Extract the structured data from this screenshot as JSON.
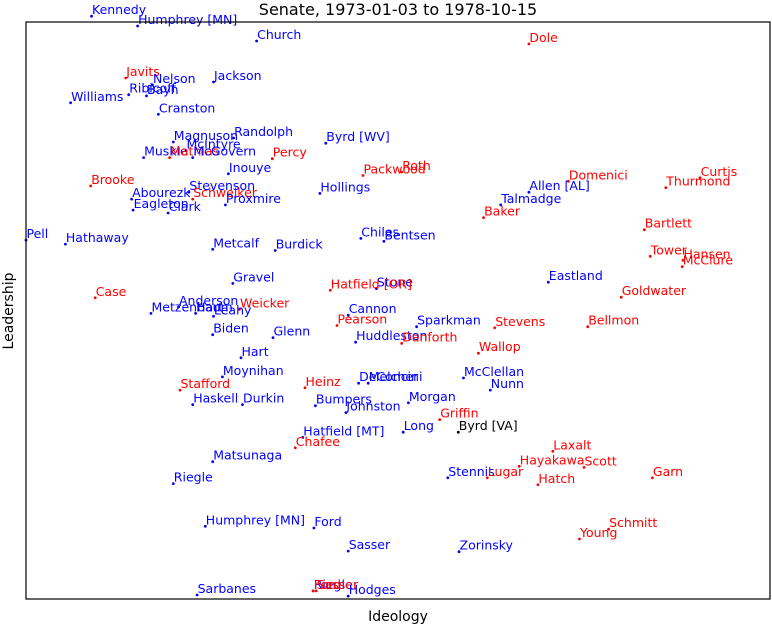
{
  "chart_data": {
    "type": "scatter",
    "title": "Senate, 1973-01-03 to 1978-10-15",
    "xlabel": "Ideology",
    "ylabel": "Leadership",
    "xlim": [
      0,
      1
    ],
    "ylim": [
      0,
      1
    ],
    "grid": false,
    "ticks": "none",
    "colors": {
      "dem": "#0000ff",
      "rep": "#ff0000",
      "ind": "#000000"
    },
    "points": [
      {
        "name": "Kennedy",
        "x": 0.088,
        "y": 1.01,
        "party": "dem"
      },
      {
        "name": "Humphrey [MN]",
        "x": 0.15,
        "y": 0.993,
        "party": "dem"
      },
      {
        "name": "Church",
        "x": 0.31,
        "y": 0.967,
        "party": "dem"
      },
      {
        "name": "Dole",
        "x": 0.676,
        "y": 0.962,
        "party": "rep"
      },
      {
        "name": "Javits",
        "x": 0.134,
        "y": 0.903,
        "party": "rep"
      },
      {
        "name": "Nelson",
        "x": 0.17,
        "y": 0.891,
        "party": "dem"
      },
      {
        "name": "Jackson",
        "x": 0.252,
        "y": 0.896,
        "party": "dem"
      },
      {
        "name": "Ribicoff",
        "x": 0.138,
        "y": 0.874,
        "party": "dem"
      },
      {
        "name": "Bayh",
        "x": 0.162,
        "y": 0.872,
        "party": "dem"
      },
      {
        "name": "Williams",
        "x": 0.06,
        "y": 0.86,
        "party": "dem"
      },
      {
        "name": "Cranston",
        "x": 0.178,
        "y": 0.84,
        "party": "dem"
      },
      {
        "name": "Randolph",
        "x": 0.279,
        "y": 0.799,
        "party": "dem"
      },
      {
        "name": "Magnuson",
        "x": 0.198,
        "y": 0.792,
        "party": "dem"
      },
      {
        "name": "Byrd [WV]",
        "x": 0.403,
        "y": 0.79,
        "party": "dem"
      },
      {
        "name": "McIntyre",
        "x": 0.215,
        "y": 0.777,
        "party": "dem"
      },
      {
        "name": "Muskie",
        "x": 0.158,
        "y": 0.765,
        "party": "dem"
      },
      {
        "name": "Mathias",
        "x": 0.193,
        "y": 0.765,
        "party": "rep"
      },
      {
        "name": "McGovern",
        "x": 0.224,
        "y": 0.765,
        "party": "dem"
      },
      {
        "name": "Percy",
        "x": 0.331,
        "y": 0.763,
        "party": "rep"
      },
      {
        "name": "Inouye",
        "x": 0.272,
        "y": 0.737,
        "party": "dem"
      },
      {
        "name": "Roth",
        "x": 0.505,
        "y": 0.74,
        "party": "rep"
      },
      {
        "name": "Packwood",
        "x": 0.453,
        "y": 0.734,
        "party": "rep"
      },
      {
        "name": "Curtis",
        "x": 0.906,
        "y": 0.73,
        "party": "rep"
      },
      {
        "name": "Domenici",
        "x": 0.729,
        "y": 0.724,
        "party": "rep"
      },
      {
        "name": "Brooke",
        "x": 0.087,
        "y": 0.716,
        "party": "rep"
      },
      {
        "name": "Thurmond",
        "x": 0.86,
        "y": 0.713,
        "party": "rep"
      },
      {
        "name": "Stevenson",
        "x": 0.219,
        "y": 0.705,
        "party": "dem"
      },
      {
        "name": "Hollings",
        "x": 0.395,
        "y": 0.703,
        "party": "dem"
      },
      {
        "name": "Allen [AL]",
        "x": 0.676,
        "y": 0.705,
        "party": "dem"
      },
      {
        "name": "Abourezk",
        "x": 0.142,
        "y": 0.693,
        "party": "dem"
      },
      {
        "name": "Schweiker",
        "x": 0.224,
        "y": 0.693,
        "party": "rep"
      },
      {
        "name": "Proxmire",
        "x": 0.268,
        "y": 0.683,
        "party": "dem"
      },
      {
        "name": "Talmadge",
        "x": 0.638,
        "y": 0.683,
        "party": "dem"
      },
      {
        "name": "Eagleton",
        "x": 0.144,
        "y": 0.674,
        "party": "dem"
      },
      {
        "name": "Clark",
        "x": 0.191,
        "y": 0.669,
        "party": "dem"
      },
      {
        "name": "Baker",
        "x": 0.615,
        "y": 0.661,
        "party": "rep"
      },
      {
        "name": "Bartlett",
        "x": 0.831,
        "y": 0.64,
        "party": "rep"
      },
      {
        "name": "Pell",
        "x": 0.0,
        "y": 0.622,
        "party": "dem"
      },
      {
        "name": "Chiles",
        "x": 0.45,
        "y": 0.625,
        "party": "dem"
      },
      {
        "name": "Bentsen",
        "x": 0.481,
        "y": 0.62,
        "party": "dem"
      },
      {
        "name": "Hathaway",
        "x": 0.053,
        "y": 0.615,
        "party": "dem"
      },
      {
        "name": "Metcalf",
        "x": 0.251,
        "y": 0.606,
        "party": "dem"
      },
      {
        "name": "Burdick",
        "x": 0.335,
        "y": 0.604,
        "party": "dem"
      },
      {
        "name": "Tower",
        "x": 0.839,
        "y": 0.594,
        "party": "rep"
      },
      {
        "name": "Hansen",
        "x": 0.883,
        "y": 0.587,
        "party": "rep"
      },
      {
        "name": "McClure",
        "x": 0.882,
        "y": 0.576,
        "party": "rep"
      },
      {
        "name": "Gravel",
        "x": 0.278,
        "y": 0.547,
        "party": "dem"
      },
      {
        "name": "Stone",
        "x": 0.471,
        "y": 0.538,
        "party": "dem"
      },
      {
        "name": "Eastland",
        "x": 0.702,
        "y": 0.549,
        "party": "dem"
      },
      {
        "name": "Hatfield [OR]",
        "x": 0.409,
        "y": 0.535,
        "party": "rep"
      },
      {
        "name": "Case",
        "x": 0.093,
        "y": 0.522,
        "party": "rep"
      },
      {
        "name": "Goldwater",
        "x": 0.8,
        "y": 0.523,
        "party": "rep"
      },
      {
        "name": "Anderson",
        "x": 0.205,
        "y": 0.506,
        "party": "dem"
      },
      {
        "name": "Weicker",
        "x": 0.287,
        "y": 0.502,
        "party": "rep"
      },
      {
        "name": "Metzenbaum",
        "x": 0.168,
        "y": 0.495,
        "party": "dem"
      },
      {
        "name": "Hart",
        "x": 0.228,
        "y": 0.495,
        "party": "dem"
      },
      {
        "name": "Leahy",
        "x": 0.252,
        "y": 0.49,
        "party": "dem"
      },
      {
        "name": "Cannon",
        "x": 0.433,
        "y": 0.492,
        "party": "dem"
      },
      {
        "name": "Pearson",
        "x": 0.418,
        "y": 0.474,
        "party": "rep"
      },
      {
        "name": "Sparkman",
        "x": 0.525,
        "y": 0.472,
        "party": "dem"
      },
      {
        "name": "Stevens",
        "x": 0.63,
        "y": 0.47,
        "party": "rep"
      },
      {
        "name": "Bellmon",
        "x": 0.755,
        "y": 0.472,
        "party": "rep"
      },
      {
        "name": "Biden",
        "x": 0.251,
        "y": 0.458,
        "party": "dem"
      },
      {
        "name": "Glenn",
        "x": 0.332,
        "y": 0.453,
        "party": "dem"
      },
      {
        "name": "Huddleston",
        "x": 0.443,
        "y": 0.445,
        "party": "dem"
      },
      {
        "name": "Danforth",
        "x": 0.505,
        "y": 0.443,
        "party": "rep"
      },
      {
        "name": "Wallop",
        "x": 0.608,
        "y": 0.426,
        "party": "rep"
      },
      {
        "name": "Hart",
        "x": 0.289,
        "y": 0.418,
        "party": "dem"
      },
      {
        "name": "Moynihan",
        "x": 0.264,
        "y": 0.385,
        "party": "dem"
      },
      {
        "name": "McClellan",
        "x": 0.588,
        "y": 0.383,
        "party": "dem"
      },
      {
        "name": "DeConcini",
        "x": 0.447,
        "y": 0.374,
        "party": "dem"
      },
      {
        "name": "Melcher",
        "x": 0.46,
        "y": 0.374,
        "party": "dem"
      },
      {
        "name": "Stafford",
        "x": 0.207,
        "y": 0.362,
        "party": "rep"
      },
      {
        "name": "Heinz",
        "x": 0.375,
        "y": 0.366,
        "party": "rep"
      },
      {
        "name": "Nunn",
        "x": 0.624,
        "y": 0.362,
        "party": "dem"
      },
      {
        "name": "Morgan",
        "x": 0.514,
        "y": 0.34,
        "party": "dem"
      },
      {
        "name": "Haskell",
        "x": 0.224,
        "y": 0.337,
        "party": "dem"
      },
      {
        "name": "Durkin",
        "x": 0.291,
        "y": 0.337,
        "party": "dem"
      },
      {
        "name": "Bumpers",
        "x": 0.389,
        "y": 0.335,
        "party": "dem"
      },
      {
        "name": "Johnston",
        "x": 0.43,
        "y": 0.323,
        "party": "dem"
      },
      {
        "name": "Griffin",
        "x": 0.556,
        "y": 0.311,
        "party": "rep"
      },
      {
        "name": "Long",
        "x": 0.507,
        "y": 0.289,
        "party": "dem"
      },
      {
        "name": "Byrd [VA]",
        "x": 0.581,
        "y": 0.289,
        "party": "ind"
      },
      {
        "name": "Hatfield [MT]",
        "x": 0.372,
        "y": 0.28,
        "party": "dem"
      },
      {
        "name": "Chafee",
        "x": 0.362,
        "y": 0.262,
        "party": "rep"
      },
      {
        "name": "Matsunaga",
        "x": 0.251,
        "y": 0.238,
        "party": "dem"
      },
      {
        "name": "Laxalt",
        "x": 0.708,
        "y": 0.256,
        "party": "rep"
      },
      {
        "name": "Hayakawa",
        "x": 0.663,
        "y": 0.23,
        "party": "rep"
      },
      {
        "name": "Scott",
        "x": 0.75,
        "y": 0.228,
        "party": "rep"
      },
      {
        "name": "Stennis",
        "x": 0.567,
        "y": 0.21,
        "party": "dem"
      },
      {
        "name": "Lugar",
        "x": 0.62,
        "y": 0.21,
        "party": "rep"
      },
      {
        "name": "Garn",
        "x": 0.842,
        "y": 0.21,
        "party": "rep"
      },
      {
        "name": "Riegle",
        "x": 0.198,
        "y": 0.2,
        "party": "dem"
      },
      {
        "name": "Hatch",
        "x": 0.688,
        "y": 0.198,
        "party": "rep"
      },
      {
        "name": "Humphrey [MN]",
        "x": 0.241,
        "y": 0.126,
        "party": "dem"
      },
      {
        "name": "Ford",
        "x": 0.387,
        "y": 0.123,
        "party": "dem"
      },
      {
        "name": "Schmitt",
        "x": 0.783,
        "y": 0.121,
        "party": "rep"
      },
      {
        "name": "Young",
        "x": 0.744,
        "y": 0.104,
        "party": "rep"
      },
      {
        "name": "Sasser",
        "x": 0.433,
        "y": 0.083,
        "party": "dem"
      },
      {
        "name": "Zorinsky",
        "x": 0.582,
        "y": 0.082,
        "party": "dem"
      },
      {
        "name": "Sarbanes",
        "x": 0.23,
        "y": 0.007,
        "party": "dem"
      },
      {
        "name": "Riegle",
        "x": 0.386,
        "y": 0.014,
        "party": "dem"
      },
      {
        "name": "Ford",
        "x": 0.386,
        "y": 0.014,
        "party": "rep"
      },
      {
        "name": "Sasser",
        "x": 0.39,
        "y": 0.014,
        "party": "rep"
      },
      {
        "name": "Hodges",
        "x": 0.433,
        "y": 0.005,
        "party": "dem"
      }
    ]
  }
}
